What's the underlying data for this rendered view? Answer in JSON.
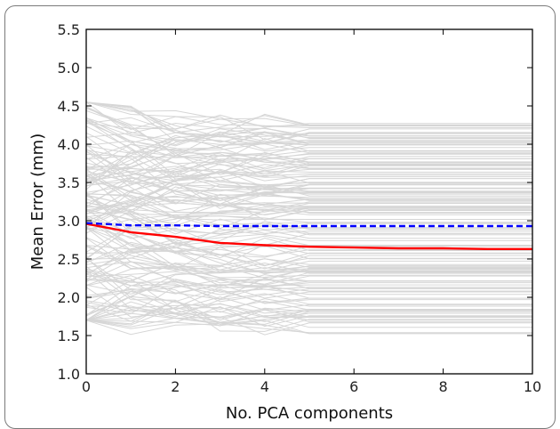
{
  "chart_data": {
    "type": "line",
    "title": "",
    "xlabel": "No. PCA components",
    "ylabel": "Mean Error (mm)",
    "xlim": [
      0,
      10
    ],
    "ylim": [
      1.0,
      5.5
    ],
    "xticks": [
      0,
      2,
      4,
      6,
      8,
      10
    ],
    "yticks": [
      1.0,
      1.5,
      2.0,
      2.5,
      3.0,
      3.5,
      4.0,
      4.5,
      5.0,
      5.5
    ],
    "xtick_labels": [
      "0",
      "2",
      "4",
      "6",
      "8",
      "10"
    ],
    "ytick_labels": [
      "1.0",
      "1.5",
      "2.0",
      "2.5",
      "3.0",
      "3.5",
      "4.0",
      "4.5",
      "5.0",
      "5.5"
    ],
    "grid": false,
    "legend": "none",
    "x": [
      0,
      1,
      2,
      3,
      4,
      5,
      6,
      7,
      8,
      9,
      10
    ],
    "series": [
      {
        "style": "solid",
        "color": "#ff0000",
        "values": [
          2.96,
          2.85,
          2.79,
          2.71,
          2.68,
          2.66,
          2.65,
          2.64,
          2.64,
          2.63,
          2.63
        ]
      },
      {
        "style": "dashed",
        "color": "#0000ff",
        "values": [
          2.97,
          2.94,
          2.94,
          2.93,
          2.93,
          2.93,
          2.93,
          2.93,
          2.93,
          2.93,
          2.93
        ]
      }
    ],
    "background_series": {
      "color": "#d6d6d6",
      "count": 160,
      "start_range": [
        1.7,
        4.55
      ],
      "end_range": [
        1.5,
        4.32
      ]
    }
  }
}
